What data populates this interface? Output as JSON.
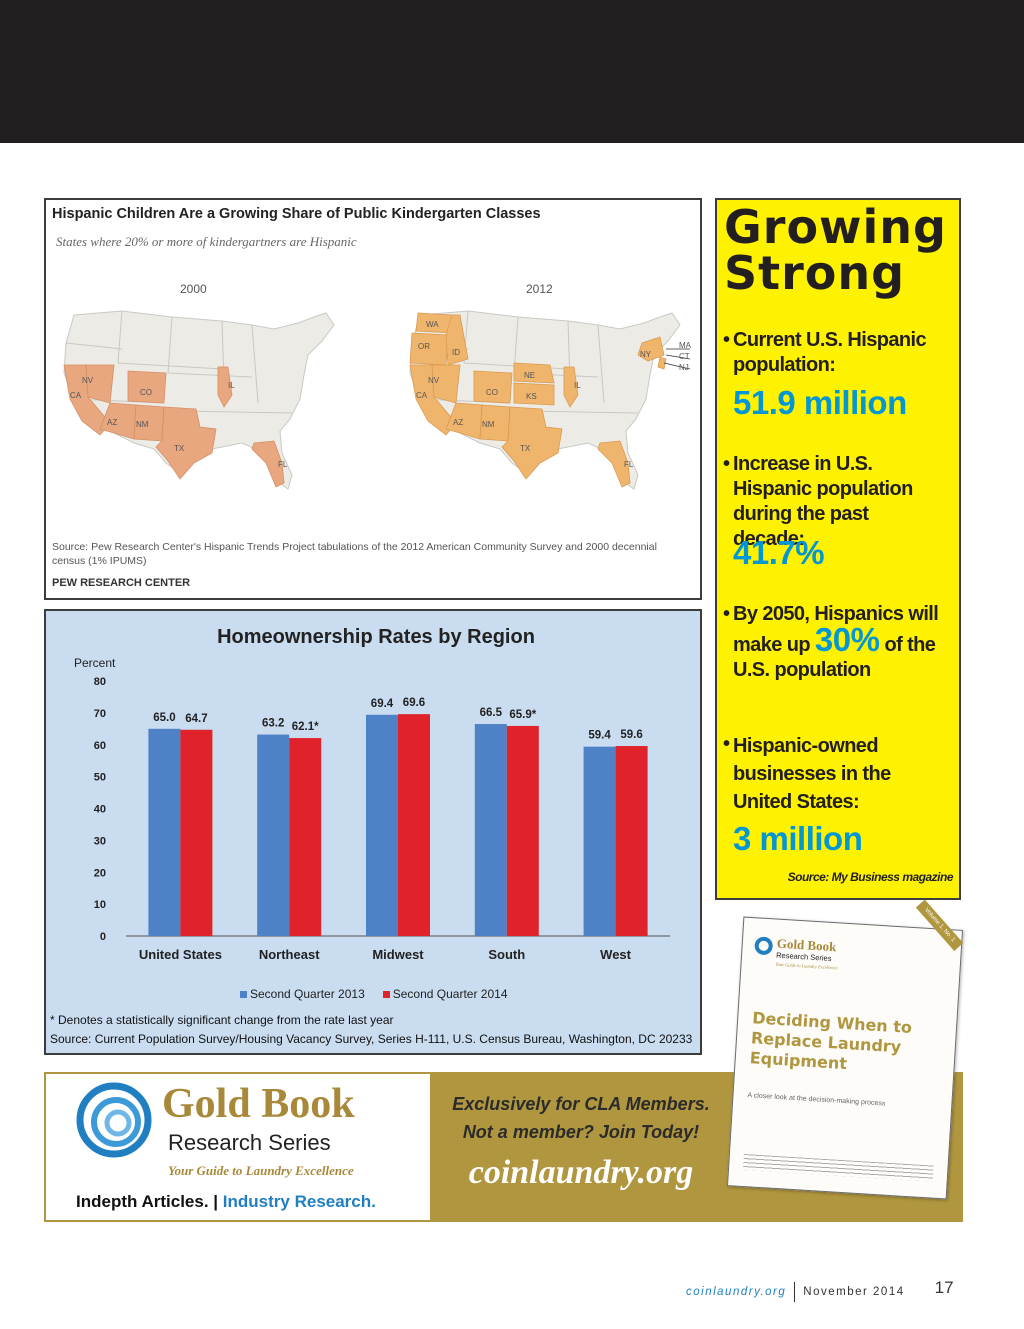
{
  "map_figure": {
    "title": "Hispanic Children Are a Growing Share of Public Kindergarten Classes",
    "subtitle": "States where 20% or more of kindergartners are Hispanic",
    "year_left": "2000",
    "year_right": "2012",
    "states_2000": [
      "NV",
      "CA",
      "AZ",
      "NM",
      "CO",
      "TX",
      "IL",
      "FL"
    ],
    "states_2012": [
      "WA",
      "OR",
      "ID",
      "NV",
      "CA",
      "AZ",
      "NM",
      "CO",
      "NE",
      "KS",
      "TX",
      "IL",
      "FL",
      "NY",
      "MA",
      "CT",
      "NJ"
    ],
    "source": "Source: Pew Research Center's Hispanic Trends Project tabulations of the 2012 American Community Survey and 2000 decennial census (1% IPUMS)",
    "org": "PEW RESEARCH CENTER",
    "colors": {
      "land": "#ecebe6",
      "highlight_2000": "#e8a77f",
      "highlight_2012": "#f0b56d",
      "border": "#c9c9c4"
    }
  },
  "chart_data": {
    "type": "bar",
    "title": "Homeownership Rates by Region",
    "ylabel": "Percent",
    "ylim": [
      0,
      80
    ],
    "yticks": [
      0,
      10,
      20,
      30,
      40,
      50,
      60,
      70,
      80
    ],
    "categories": [
      "United States",
      "Northeast",
      "Midwest",
      "South",
      "West"
    ],
    "series": [
      {
        "name": "Second Quarter 2013",
        "values": [
          65.0,
          63.2,
          69.4,
          66.5,
          59.4
        ],
        "labels": [
          "65.0",
          "63.2",
          "69.4",
          "66.5",
          "59.4"
        ],
        "color": "#4f81c6"
      },
      {
        "name": "Second Quarter 2014",
        "values": [
          64.7,
          62.1,
          69.6,
          65.9,
          59.6
        ],
        "labels": [
          "64.7",
          "62.1*",
          "69.6",
          "65.9*",
          "59.6"
        ],
        "color": "#e0232a"
      }
    ],
    "note": "* Denotes a statistically significant change from the rate last year",
    "source": "Source: Current Population Survey/Housing Vacancy Survey,  Series H-111, U.S. Census Bureau, Washington, DC 20233"
  },
  "facts": {
    "title_line1": "Growing",
    "title_line2": "Strong",
    "items": [
      {
        "text": "Current U.S. Hispanic population:",
        "value": "51.9 million"
      },
      {
        "text": "Increase in U.S. Hispanic population during the past decade:",
        "value": "41.7%"
      },
      {
        "text_before": "By 2050, Hispanics will make up",
        "value": "30%",
        "text_after": "of the U.S. population"
      },
      {
        "text": "Hispanic-owned businesses in the United States:",
        "value": "3 million"
      }
    ],
    "source": "Source: My Business magazine",
    "colors": {
      "background": "#fff200",
      "value": "#0097d4"
    }
  },
  "banner": {
    "brand": "Gold Book",
    "series": "Research Series",
    "tagline": "Your Guide to Laundry Excellence",
    "foot_left": "Indepth Articles.",
    "foot_sep": "|",
    "foot_right": "Industry Research.",
    "line1": "Exclusively for CLA Members.",
    "line2": "Not a member? Join Today!",
    "url": "coinlaundry.org"
  },
  "booklet": {
    "brand": "Gold Book",
    "series": "Research Series",
    "ribbon": "Volume 1, No. 1",
    "title": "Deciding When to Replace Laundry Equipment",
    "subtitle": "A closer look at the decision-making process"
  },
  "footer": {
    "url": "coinlaundry.org",
    "date": "November 2014",
    "page": "17"
  }
}
